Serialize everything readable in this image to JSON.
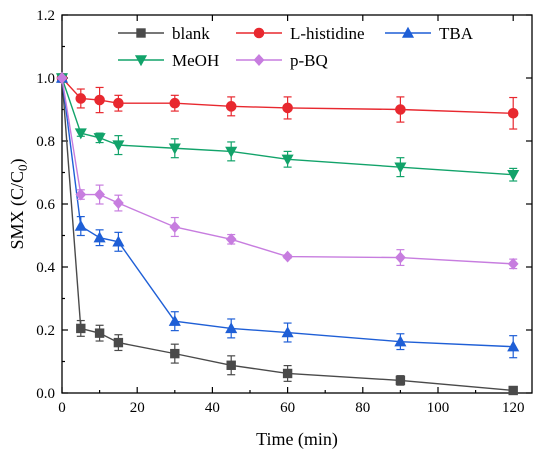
{
  "chart_data": {
    "type": "line",
    "xlabel": "Time  (min)",
    "ylabel_main": "SMX (C/C",
    "ylabel_sub": "0",
    "ylabel_close": ")",
    "xlim": [
      0,
      125
    ],
    "ylim": [
      0,
      1.2
    ],
    "xticks": [
      0,
      20,
      40,
      60,
      80,
      100,
      120
    ],
    "yticks": [
      0.0,
      0.2,
      0.4,
      0.6,
      0.8,
      1.0,
      1.2
    ],
    "grid": false,
    "legend_position": "top",
    "series": [
      {
        "name": "blank",
        "color": "#4a4a4a",
        "marker": "square",
        "x": [
          0,
          5,
          10,
          15,
          30,
          45,
          60,
          90,
          120
        ],
        "y": [
          1.0,
          0.205,
          0.19,
          0.16,
          0.125,
          0.088,
          0.062,
          0.04,
          0.008
        ],
        "err": [
          0.0,
          0.025,
          0.025,
          0.025,
          0.03,
          0.03,
          0.025,
          0.015,
          0.008
        ]
      },
      {
        "name": "L-histidine",
        "color": "#e8282f",
        "marker": "circle",
        "x": [
          0,
          5,
          10,
          15,
          30,
          45,
          60,
          90,
          120
        ],
        "y": [
          1.0,
          0.935,
          0.93,
          0.92,
          0.92,
          0.91,
          0.905,
          0.9,
          0.888
        ],
        "err": [
          0.0,
          0.03,
          0.04,
          0.025,
          0.025,
          0.03,
          0.035,
          0.04,
          0.05
        ]
      },
      {
        "name": "TBA",
        "color": "#1f5fd6",
        "marker": "triangle",
        "x": [
          0,
          5,
          10,
          15,
          30,
          45,
          60,
          90,
          120
        ],
        "y": [
          1.0,
          0.53,
          0.493,
          0.48,
          0.228,
          0.205,
          0.192,
          0.163,
          0.147
        ],
        "err": [
          0.0,
          0.03,
          0.025,
          0.03,
          0.03,
          0.03,
          0.03,
          0.025,
          0.035
        ]
      },
      {
        "name": "MeOH",
        "color": "#12a36a",
        "marker": "triangle-down",
        "x": [
          0,
          5,
          10,
          15,
          30,
          45,
          60,
          90,
          120
        ],
        "y": [
          1.0,
          0.825,
          0.81,
          0.787,
          0.777,
          0.767,
          0.742,
          0.717,
          0.693
        ],
        "err": [
          0.0,
          0.01,
          0.015,
          0.03,
          0.03,
          0.03,
          0.025,
          0.03,
          0.02
        ]
      },
      {
        "name": "p-BQ",
        "color": "#c77ddf",
        "marker": "diamond",
        "x": [
          0,
          5,
          10,
          15,
          30,
          45,
          60,
          90,
          120
        ],
        "y": [
          1.0,
          0.63,
          0.63,
          0.603,
          0.527,
          0.488,
          0.433,
          0.43,
          0.41
        ],
        "err": [
          0.0,
          0.015,
          0.03,
          0.025,
          0.03,
          0.015,
          0.005,
          0.025,
          0.015
        ]
      }
    ]
  }
}
